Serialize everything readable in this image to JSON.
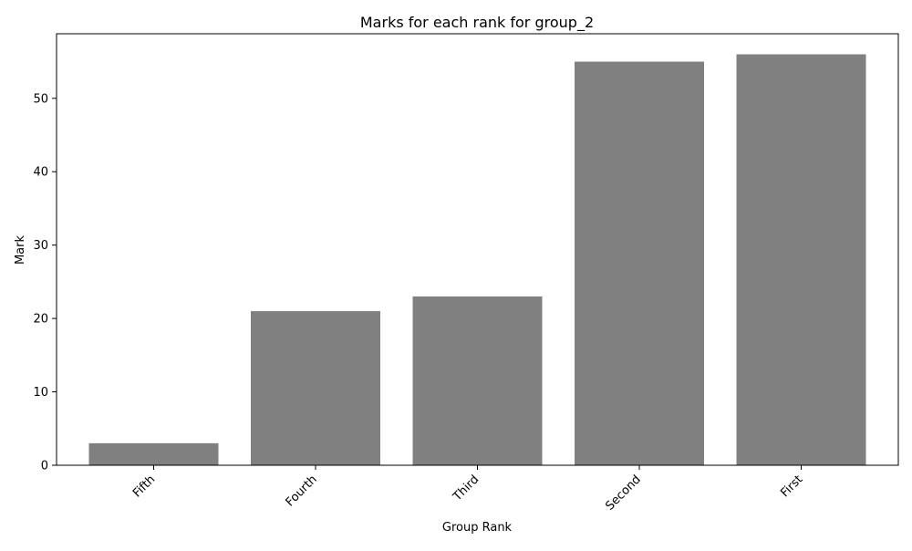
{
  "chart_data": {
    "type": "bar",
    "title": "Marks for each rank for group_2",
    "xlabel": "Group Rank",
    "ylabel": "Mark",
    "categories": [
      "Fifth",
      "Fourth",
      "Third",
      "Second",
      "First"
    ],
    "values": [
      3,
      21,
      23,
      55,
      56
    ],
    "ylim": [
      0,
      58.8
    ],
    "yticks": [
      0,
      10,
      20,
      30,
      40,
      50
    ],
    "bar_color": "#808080",
    "grid": false,
    "x_tick_rotation_deg": 45
  }
}
